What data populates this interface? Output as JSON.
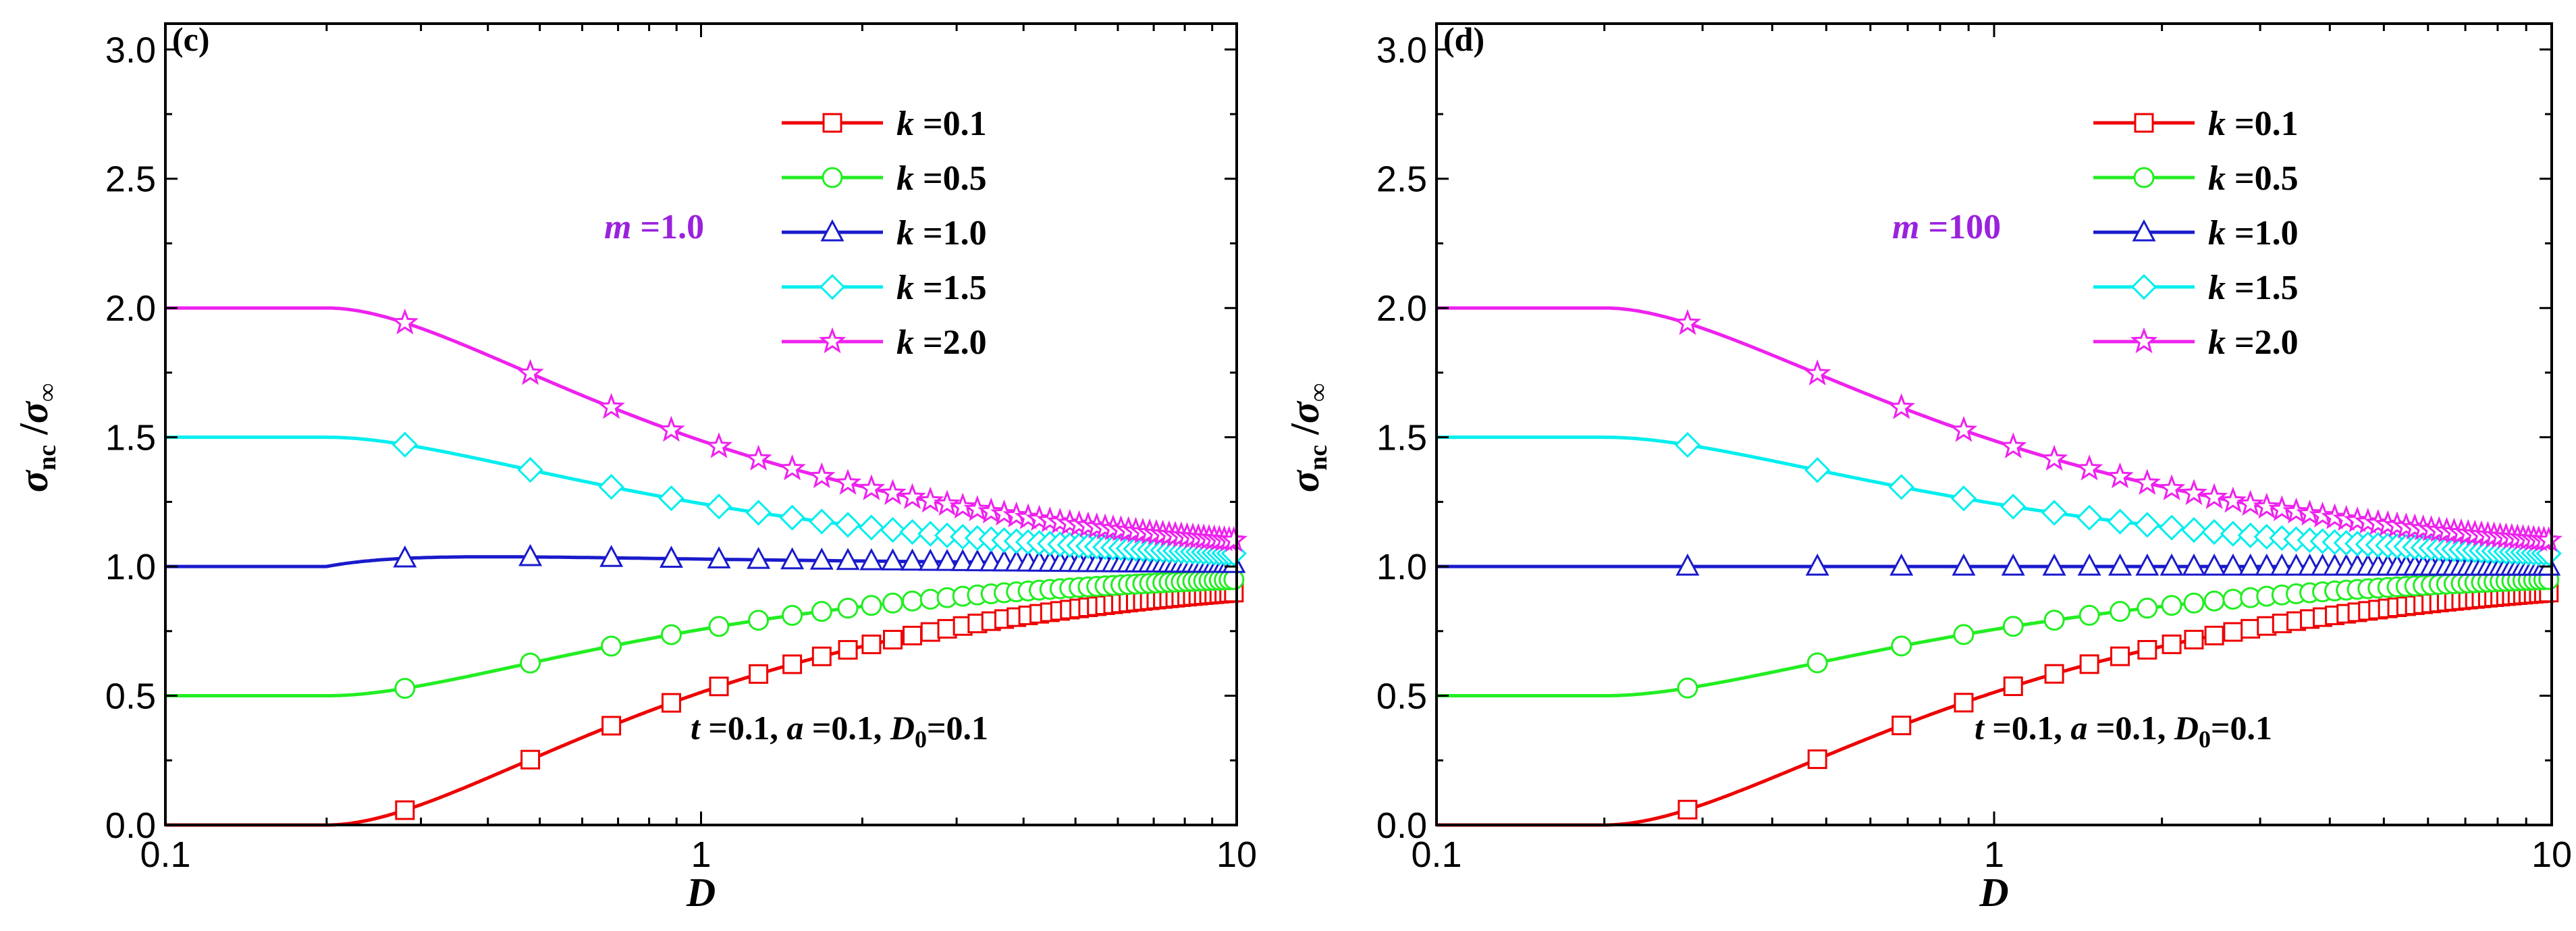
{
  "chart_data": [
    {
      "type": "line",
      "panel_label": "(c)",
      "xscale": "log",
      "xlim": [
        0.1,
        10
      ],
      "ylim": [
        0.0,
        3.1
      ],
      "xticks": [
        0.1,
        1,
        10
      ],
      "xtick_labels": [
        "0.1",
        "1",
        "10"
      ],
      "yticks": [
        0.0,
        0.5,
        1.0,
        1.5,
        2.0,
        2.5,
        3.0
      ],
      "ytick_labels": [
        "0.0",
        "0.5",
        "1.0",
        "1.5",
        "2.0",
        "2.5",
        "3.0"
      ],
      "xlabel": "D",
      "ylabel": {
        "num": "σ",
        "num_sub": "nc",
        "sep": " /",
        "den": "σ",
        "den_sub": "∞"
      },
      "annotation": {
        "m_prefix": "m",
        "m_value": " =1.0"
      },
      "params": {
        "t": "t",
        "t_val": " =0.1, ",
        "a": "a",
        "a_val": " =0.1, ",
        "d": "D",
        "d_sub": "0",
        "d_val": "=0.1"
      },
      "legend_position": "upper-right",
      "series": [
        {
          "name": "k =0.1",
          "sym": "k",
          "val": " =0.1",
          "color": "#ee0000",
          "marker": "square",
          "knee": 0.2,
          "plateau": 0.0,
          "mode": "mono"
        },
        {
          "name": "k =0.5",
          "sym": "k",
          "val": " =0.5",
          "color": "#22ee22",
          "marker": "circle",
          "knee": 0.2,
          "plateau": 0.5,
          "mode": "mono"
        },
        {
          "name": "k =1.0",
          "sym": "k",
          "val": " =1.0",
          "color": "#1a1acc",
          "marker": "triangle",
          "knee": 0.2,
          "plateau": 1.0,
          "mode": "bump",
          "bump": 0.06
        },
        {
          "name": "k =1.5",
          "sym": "k",
          "val": " =1.5",
          "color": "#00eeee",
          "marker": "diamond",
          "knee": 0.2,
          "plateau": 1.5,
          "mode": "mono"
        },
        {
          "name": "k =2.0",
          "sym": "k",
          "val": " =2.0",
          "color": "#ee22ee",
          "marker": "star",
          "knee": 0.2,
          "plateau": 2.0,
          "mode": "mono"
        }
      ]
    },
    {
      "type": "line",
      "panel_label": "(d)",
      "xscale": "log",
      "xlim": [
        0.1,
        10
      ],
      "ylim": [
        0.0,
        3.1
      ],
      "xticks": [
        0.1,
        1,
        10
      ],
      "xtick_labels": [
        "0.1",
        "1",
        "10"
      ],
      "yticks": [
        0.0,
        0.5,
        1.0,
        1.5,
        2.0,
        2.5,
        3.0
      ],
      "ytick_labels": [
        "0.0",
        "0.5",
        "1.0",
        "1.5",
        "2.0",
        "2.5",
        "3.0"
      ],
      "xlabel": "D",
      "ylabel": {
        "num": "σ",
        "num_sub": "nc",
        "sep": " /",
        "den": "σ",
        "den_sub": "∞"
      },
      "annotation": {
        "m_prefix": "m",
        "m_value": " =100"
      },
      "params": {
        "t": "t",
        "t_val": " =0.1, ",
        "a": "a",
        "a_val": " =0.1, ",
        "d": "D",
        "d_sub": "0",
        "d_val": "=0.1"
      },
      "legend_position": "upper-right",
      "series": [
        {
          "name": "k =0.1",
          "sym": "k",
          "val": " =0.1",
          "color": "#ee0000",
          "marker": "square",
          "knee": 0.2,
          "plateau": 0.0,
          "mode": "mono"
        },
        {
          "name": "k =0.5",
          "sym": "k",
          "val": " =0.5",
          "color": "#22ee22",
          "marker": "circle",
          "knee": 0.2,
          "plateau": 0.5,
          "mode": "mono"
        },
        {
          "name": "k =1.0",
          "sym": "k",
          "val": " =1.0",
          "color": "#1a1acc",
          "marker": "triangle",
          "knee": 0.2,
          "plateau": 1.0,
          "mode": "flat"
        },
        {
          "name": "k =1.5",
          "sym": "k",
          "val": " =1.5",
          "color": "#00eeee",
          "marker": "diamond",
          "knee": 0.2,
          "plateau": 1.5,
          "mode": "mono"
        },
        {
          "name": "k =2.0",
          "sym": "k",
          "val": " =2.0",
          "color": "#ee22ee",
          "marker": "star",
          "knee": 0.2,
          "plateau": 2.0,
          "mode": "mono"
        }
      ]
    }
  ]
}
